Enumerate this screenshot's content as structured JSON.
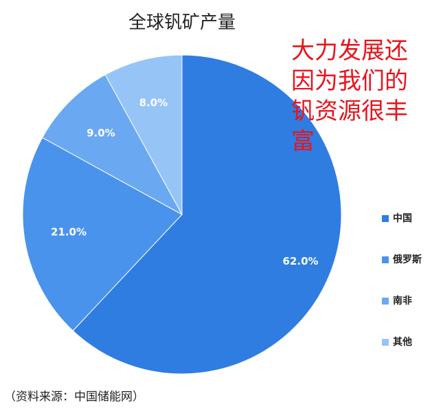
{
  "chart_data": {
    "type": "pie",
    "title": "全球钒矿产量",
    "categories": [
      "中国",
      "俄罗斯",
      "南非",
      "其他"
    ],
    "values": [
      62,
      21,
      9,
      8
    ],
    "value_labels": [
      "62.0%",
      "21.0%",
      "9.0%",
      "8.0%"
    ],
    "colors": [
      "#2f7de1",
      "#4a93ec",
      "#6aa9f1",
      "#96c4f6"
    ],
    "annotation": "大力发展还因为我们的钒资源很丰富",
    "source": "（资料来源：中国储能网）",
    "legend": "right"
  }
}
